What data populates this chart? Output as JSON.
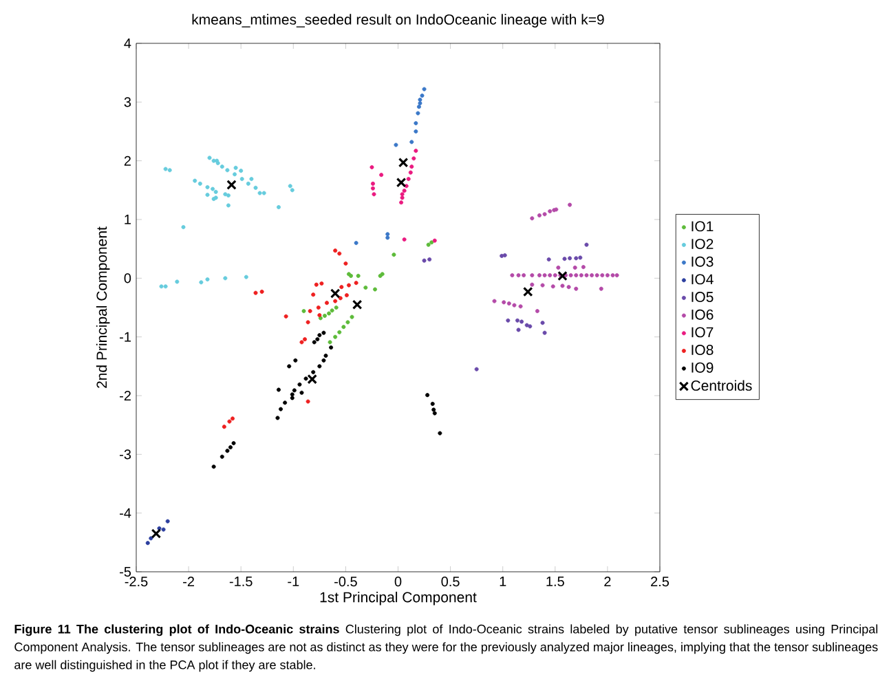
{
  "chart_data": {
    "type": "scatter",
    "title": "kmeans_mtimes_seeded result on IndoOceanic lineage with k=9",
    "xlabel": "1st Principal Component",
    "ylabel": "2nd Principal Component",
    "xlim": [
      -2.5,
      2.5
    ],
    "ylim": [
      -5,
      4
    ],
    "xticks": [
      -2.5,
      -2,
      -1.5,
      -1,
      -0.5,
      0,
      0.5,
      1,
      1.5,
      2,
      2.5
    ],
    "yticks": [
      -5,
      -4,
      -3,
      -2,
      -1,
      0,
      1,
      2,
      3,
      4
    ],
    "marker": "circle",
    "legend": "right",
    "series": [
      {
        "name": "IO1",
        "color": "#5dbb3a",
        "x": [
          -0.65,
          -0.6,
          -0.56,
          -0.52,
          -0.48,
          -0.44,
          -0.74,
          -0.7,
          -0.66,
          -0.63,
          -0.59,
          -0.9,
          -0.47,
          -0.45,
          -0.38,
          -0.31,
          -0.22,
          -0.17,
          -0.15,
          -0.04,
          0.29,
          0.32
        ],
        "values": [
          -1.09,
          -1.0,
          -0.92,
          -0.83,
          -0.75,
          -0.66,
          -0.68,
          -0.64,
          -0.6,
          -0.55,
          -0.5,
          -0.56,
          0.07,
          0.04,
          0.04,
          -0.16,
          -0.19,
          0.04,
          0.07,
          0.4,
          0.57,
          0.61
        ]
      },
      {
        "name": "IO2",
        "color": "#66ccdd",
        "x": [
          -1.8,
          -1.76,
          -1.73,
          -1.72,
          -1.68,
          -1.63,
          -1.56,
          -1.49,
          -1.43,
          -1.36,
          -1.55,
          -1.5,
          -1.4,
          -1.32,
          -1.28,
          -1.14,
          -1.03,
          -1.01,
          -2.22,
          -2.18,
          -1.94,
          -1.89,
          -1.82,
          -1.77,
          -1.74,
          -1.82,
          -1.76,
          -1.74,
          -1.65,
          -1.62,
          -1.62,
          -2.05,
          -2.26,
          -2.22,
          -2.11,
          -1.88,
          -1.82,
          -1.65,
          -1.45
        ],
        "values": [
          2.05,
          2.0,
          2.0,
          1.96,
          1.9,
          1.84,
          1.77,
          1.69,
          1.61,
          1.54,
          1.88,
          1.83,
          1.69,
          1.45,
          1.45,
          1.21,
          1.57,
          1.5,
          1.86,
          1.84,
          1.66,
          1.61,
          1.55,
          1.52,
          1.47,
          1.42,
          1.35,
          1.37,
          1.43,
          1.41,
          1.24,
          0.87,
          -0.14,
          -0.14,
          -0.06,
          -0.07,
          -0.02,
          0.0,
          0.02
        ]
      },
      {
        "name": "IO3",
        "color": "#3b78c8",
        "x": [
          0.25,
          0.23,
          0.21,
          0.21,
          0.2,
          0.19,
          0.17,
          0.17,
          0.13,
          -0.02,
          -0.1,
          -0.1,
          -0.4
        ],
        "values": [
          3.22,
          3.11,
          3.04,
          2.98,
          2.92,
          2.81,
          2.64,
          2.5,
          2.32,
          2.27,
          0.75,
          0.69,
          0.6
        ]
      },
      {
        "name": "IO4",
        "color": "#2b3e9e",
        "x": [
          -2.39,
          -2.36,
          -2.28,
          -2.24,
          -2.2
        ],
        "values": [
          -4.51,
          -4.43,
          -4.26,
          -4.28,
          -4.14
        ]
      },
      {
        "name": "IO5",
        "color": "#6a4aaa",
        "x": [
          0.99,
          1.02,
          1.44,
          1.59,
          1.64,
          1.7,
          1.74,
          1.8,
          1.05,
          1.14,
          1.18,
          1.23,
          1.26,
          1.15,
          1.38,
          1.4,
          0.75,
          0.25,
          0.3
        ],
        "values": [
          0.38,
          0.39,
          0.32,
          0.33,
          0.34,
          0.34,
          0.35,
          0.57,
          -0.72,
          -0.72,
          -0.74,
          -0.8,
          -0.82,
          -0.88,
          -0.76,
          -0.93,
          -1.55,
          0.3,
          0.32
        ]
      },
      {
        "name": "IO6",
        "color": "#b44aa8",
        "x": [
          1.28,
          1.35,
          1.4,
          1.45,
          1.49,
          1.51,
          1.64,
          1.09,
          1.15,
          1.2,
          1.28,
          1.35,
          1.4,
          1.45,
          1.5,
          1.55,
          1.6,
          1.65,
          1.7,
          1.75,
          1.8,
          1.85,
          1.9,
          1.95,
          2.0,
          2.05,
          2.09,
          1.53,
          1.69,
          1.77,
          1.57,
          1.63,
          1.7,
          1.94,
          1.38,
          1.28,
          1.48,
          0.92,
          1.01,
          1.06,
          1.11,
          1.17,
          1.33
        ],
        "values": [
          1.02,
          1.07,
          1.09,
          1.14,
          1.16,
          1.17,
          1.25,
          0.05,
          0.05,
          0.05,
          0.05,
          0.05,
          0.05,
          0.05,
          0.05,
          0.05,
          0.05,
          0.05,
          0.05,
          0.05,
          0.05,
          0.05,
          0.05,
          0.05,
          0.05,
          0.05,
          0.05,
          0.18,
          0.18,
          0.19,
          -0.13,
          -0.15,
          -0.18,
          -0.18,
          -0.12,
          -0.11,
          -0.14,
          -0.39,
          -0.41,
          -0.43,
          -0.46,
          -0.48,
          -0.56
        ]
      },
      {
        "name": "IO7",
        "color": "#ea1a80",
        "x": [
          0.17,
          0.15,
          0.13,
          0.12,
          0.1,
          0.08,
          0.06,
          0.04,
          0.04,
          0.03,
          -0.25,
          -0.16,
          -0.24,
          -0.24,
          -0.23,
          0.06,
          0.35
        ],
        "values": [
          2.17,
          2.04,
          1.9,
          1.8,
          1.69,
          1.57,
          1.49,
          1.43,
          1.37,
          1.29,
          1.89,
          1.76,
          1.61,
          1.53,
          1.43,
          0.66,
          0.64
        ]
      },
      {
        "name": "IO8",
        "color": "#ee2020",
        "x": [
          -0.6,
          -0.56,
          -0.5,
          -0.4,
          -0.47,
          -0.54,
          -0.78,
          -0.73,
          -0.81,
          -0.6,
          -0.55,
          -0.49,
          -0.68,
          -0.76,
          -0.84,
          -0.75,
          -1.07,
          -0.86,
          -0.92,
          -0.89,
          -1.3,
          -1.36,
          -0.86,
          -1.66,
          -1.61,
          -1.58
        ],
        "values": [
          0.47,
          0.42,
          0.25,
          -0.08,
          -0.12,
          -0.15,
          -0.11,
          -0.09,
          -0.28,
          -0.39,
          -0.34,
          -0.29,
          -0.42,
          -0.5,
          -0.56,
          -0.63,
          -0.65,
          -0.75,
          -1.09,
          -1.04,
          -0.23,
          -0.25,
          -2.1,
          -2.53,
          -2.44,
          -2.39
        ]
      },
      {
        "name": "IO9",
        "color": "#000000",
        "x": [
          -0.71,
          -0.75,
          -0.77,
          -0.8,
          -0.64,
          -0.69,
          -0.71,
          -0.75,
          -0.81,
          -0.88,
          -0.94,
          -0.99,
          -1.01,
          -0.92,
          -1.01,
          -0.98,
          -1.04,
          -1.14,
          -1.08,
          -1.12,
          -1.15,
          -1.57,
          -1.6,
          -1.63,
          -1.68,
          -1.76,
          0.28,
          0.33,
          0.34,
          0.35,
          0.4
        ],
        "values": [
          -0.93,
          -0.97,
          -1.04,
          -1.09,
          -1.18,
          -1.32,
          -1.4,
          -1.5,
          -1.6,
          -1.71,
          -1.81,
          -1.91,
          -1.98,
          -1.95,
          -2.04,
          -1.4,
          -1.5,
          -1.9,
          -2.12,
          -2.23,
          -2.38,
          -2.81,
          -2.88,
          -2.94,
          -3.04,
          -3.21,
          -1.99,
          -2.14,
          -2.24,
          -2.3,
          -2.64
        ]
      },
      {
        "name": "Centroids",
        "color": "#000000",
        "marker": "cross",
        "x": [
          -1.59,
          0.05,
          0.03,
          -0.6,
          -0.39,
          -0.82,
          -2.31,
          1.24,
          1.57
        ],
        "values": [
          1.59,
          1.97,
          1.63,
          -0.26,
          -0.45,
          -1.72,
          -4.35,
          -0.23,
          0.04
        ]
      }
    ],
    "annotations": [
      "**Figure 11 The clustering plot of Indo-Oceanic strains** Clustering plot of Indo-Oceanic strains labeled by putative tensor sublineages using Principal Component Analysis. The tensor sublineages are not as distinct as they were for the previously analyzed major lineages, implying that the tensor sublineages are well distinguished in the PCA plot if they are stable."
    ]
  }
}
